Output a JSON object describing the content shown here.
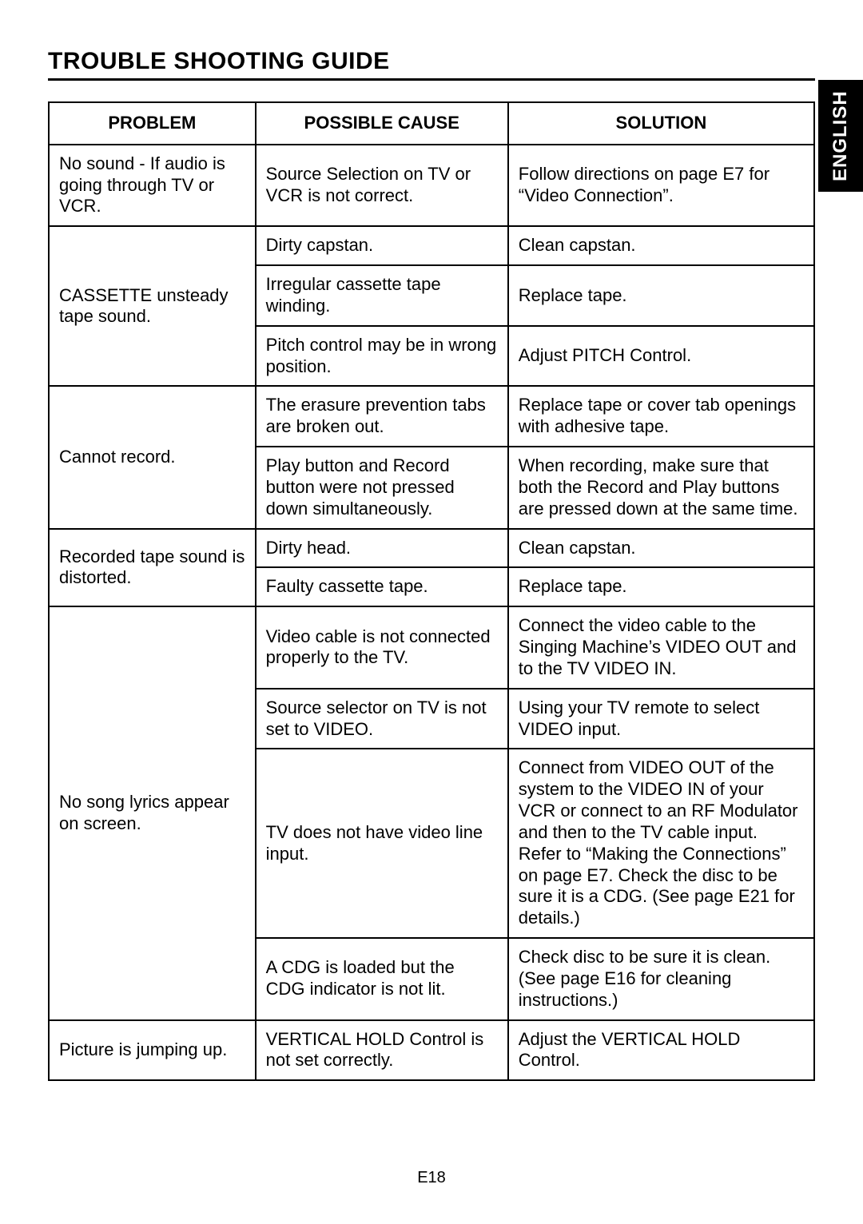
{
  "page": {
    "title": "TROUBLE SHOOTING GUIDE",
    "language_tab": "ENGLISH",
    "page_number": "E18"
  },
  "table": {
    "headers": {
      "problem": "PROBLEM",
      "cause": "POSSIBLE CAUSE",
      "solution": "SOLUTION"
    },
    "groups": [
      {
        "problem": "No sound - If audio is going through TV or VCR.",
        "rows": [
          {
            "cause": "Source Selection on TV or VCR is not correct.",
            "solution": "Follow directions on page E7 for “Video Connection”."
          }
        ]
      },
      {
        "problem": "CASSETTE unsteady tape sound.",
        "rows": [
          {
            "cause": "Dirty capstan.",
            "solution": "Clean capstan."
          },
          {
            "cause": "Irregular cassette tape winding.",
            "solution": "Replace tape."
          },
          {
            "cause": "Pitch control may be in wrong position.",
            "solution": "Adjust PITCH Control."
          }
        ]
      },
      {
        "problem": "Cannot record.",
        "rows": [
          {
            "cause": "The erasure prevention tabs are broken out.",
            "solution": "Replace tape or cover tab openings with adhesive tape."
          },
          {
            "cause": "Play button and Record button were not pressed down simultaneously.",
            "solution": "When recording, make sure that both the Record and Play buttons are pressed down at the same time.",
            "cause_justify": true,
            "solution_justify": true
          }
        ]
      },
      {
        "problem": "Recorded tape sound is distorted.",
        "rows": [
          {
            "cause": "Dirty head.",
            "solution": "Clean capstan."
          },
          {
            "cause": "Faulty cassette tape.",
            "solution": "Replace tape."
          }
        ]
      },
      {
        "problem": "No song lyrics appear on screen.",
        "rows": [
          {
            "cause": "Video cable is not connected properly to the TV.",
            "solution": "Connect the video cable to the Singing Machine’s VIDEO OUT and to the TV VIDEO IN.",
            "solution_justify": true
          },
          {
            "cause": "Source selector on TV is not set to VIDEO.",
            "solution": "Using your TV remote to select VIDEO input."
          },
          {
            "cause": "TV does not have video line input.",
            "solution": "Connect from VIDEO OUT of the system to the VIDEO IN of your VCR or connect to an RF Modulator and then to the TV cable input. Refer to “Making the Connections” on page E7. Check the disc to be sure it is a CDG. (See page E21 for details.)"
          },
          {
            "cause": "A CDG is loaded but the CDG indicator is not lit.",
            "solution": "Check disc to be sure it is clean. (See page E16 for cleaning instructions.)"
          }
        ]
      },
      {
        "problem": "Picture is jumping up.",
        "rows": [
          {
            "cause": "VERTICAL HOLD Control is not set correctly.",
            "solution": "Adjust the VERTICAL HOLD Control."
          }
        ]
      }
    ]
  }
}
